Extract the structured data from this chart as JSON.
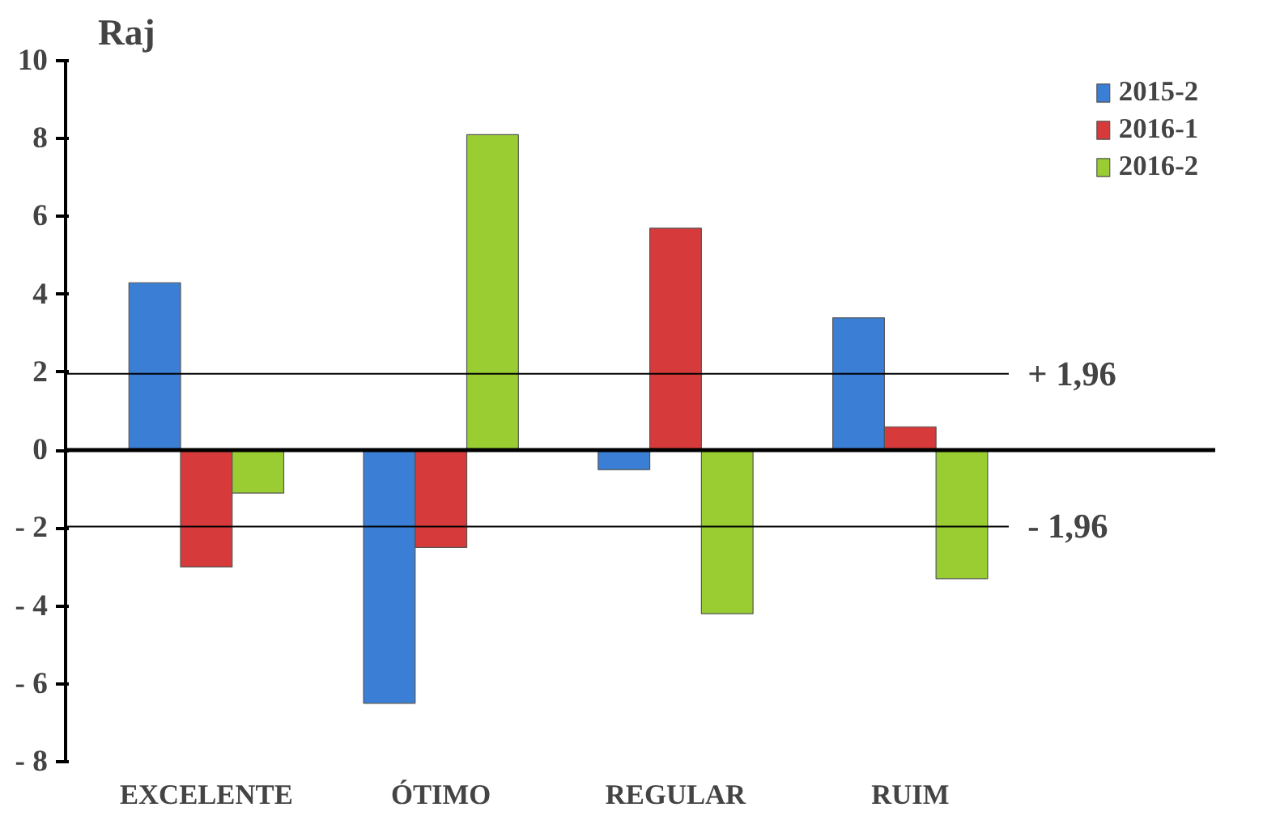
{
  "chart_data": {
    "type": "bar",
    "ylabel": "Raj",
    "categories": [
      "EXCELENTE",
      "ÓTIMO",
      "REGULAR",
      "RUIM"
    ],
    "series": [
      {
        "name": "2015-2",
        "color": "#3a7fd5",
        "values": [
          4.3,
          -6.5,
          -0.5,
          3.4
        ]
      },
      {
        "name": "2016-1",
        "color": "#d63a3a",
        "values": [
          -3.0,
          -2.5,
          5.7,
          0.6
        ]
      },
      {
        "name": "2016-2",
        "color": "#9acd32",
        "values": [
          -1.1,
          8.1,
          -4.2,
          -3.3
        ]
      }
    ],
    "ylim": [
      -8,
      10
    ],
    "yticks": [
      {
        "value": -8,
        "label": "- 8"
      },
      {
        "value": -6,
        "label": "- 6"
      },
      {
        "value": -4,
        "label": "- 4"
      },
      {
        "value": -2,
        "label": "- 2"
      },
      0,
      2,
      4,
      6,
      8,
      10
    ],
    "ref_lines": [
      {
        "axis": "y",
        "value": 1.96,
        "label": "+ 1,96"
      },
      {
        "axis": "y",
        "value": -1.96,
        "label": "- 1,96"
      }
    ],
    "grid": false,
    "legend": "top right"
  }
}
